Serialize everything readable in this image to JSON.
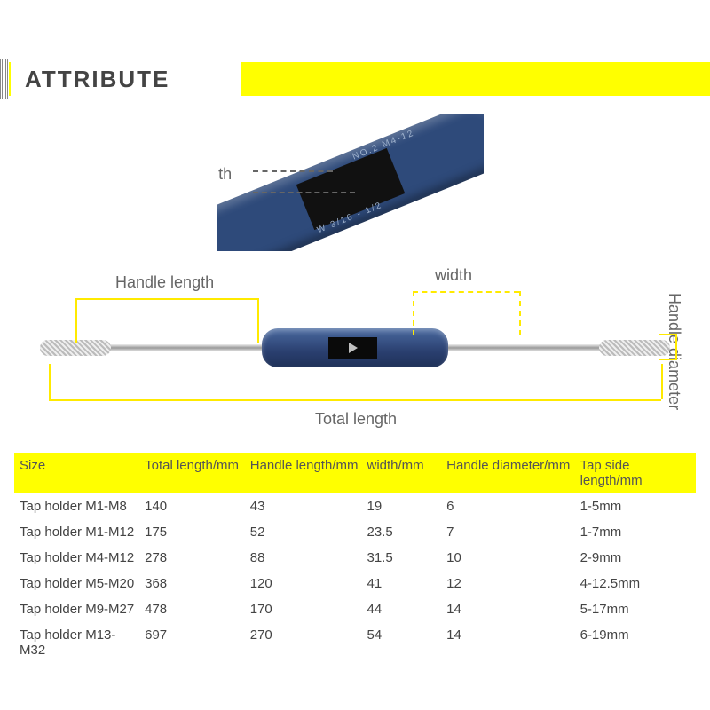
{
  "title": "ATTRIBUTE",
  "accent_color": "#ffff00",
  "dim_color": "#ffea00",
  "text_color": "#666666",
  "body_color": "#2e4a7a",
  "labels": {
    "tap_side": "Tap side length",
    "handle_length": "Handle length",
    "width": "width",
    "handle_diameter": "Handle diameter",
    "total_length": "Total length"
  },
  "engraving_top": "NO.2 M4-12",
  "engraving_bot": "W 3/16 - 1/2",
  "table": {
    "columns": [
      "Size",
      "Total length/mm",
      "Handle length/mm",
      "width/mm",
      "Handle diameter/mm",
      "Tap side length/mm"
    ],
    "rows": [
      [
        "Tap holder M1-M8",
        "140",
        "43",
        "19",
        "6",
        "1-5mm"
      ],
      [
        "Tap holder M1-M12",
        "175",
        "52",
        "23.5",
        "7",
        "1-7mm"
      ],
      [
        "Tap holder M4-M12",
        "278",
        "88",
        "31.5",
        "10",
        "2-9mm"
      ],
      [
        "Tap holder M5-M20",
        "368",
        "120",
        "41",
        "12",
        "4-12.5mm"
      ],
      [
        "Tap holder M9-M27",
        "478",
        "170",
        "44",
        "14",
        "5-17mm"
      ],
      [
        "Tap holder M13-M32",
        "697",
        "270",
        "54",
        "14",
        "6-19mm"
      ]
    ]
  }
}
